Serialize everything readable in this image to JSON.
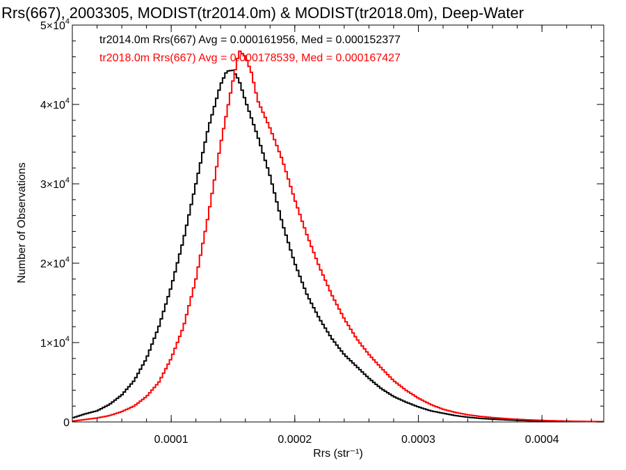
{
  "chart_data": {
    "type": "line",
    "title": "Rrs(667), 2003305, MODIST(tr2014.0m) & MODIST(tr2018.0m), Deep-Water",
    "xlabel": "Rrs (str⁻¹)",
    "ylabel": "Number of Observations",
    "xlim": [
      2e-05,
      0.00045
    ],
    "ylim": [
      0,
      50000
    ],
    "x_ticks": [
      {
        "value": 0.0001,
        "label": "0.0001"
      },
      {
        "value": 0.0002,
        "label": "0.0002"
      },
      {
        "value": 0.0003,
        "label": "0.0003"
      },
      {
        "value": 0.0004,
        "label": "0.0004"
      }
    ],
    "y_ticks": [
      {
        "value": 0,
        "label": "0"
      },
      {
        "value": 10000,
        "mantissa": "1×10",
        "exp": "4"
      },
      {
        "value": 20000,
        "mantissa": "2×10",
        "exp": "4"
      },
      {
        "value": 30000,
        "mantissa": "3×10",
        "exp": "4"
      },
      {
        "value": 40000,
        "mantissa": "4×10",
        "exp": "4"
      },
      {
        "value": 50000,
        "mantissa": "5×10",
        "exp": "4"
      }
    ],
    "grid": false,
    "step": true,
    "annotations": [
      {
        "text": "tr2014.0m Rrs(667) Avg = 0.000161956, Med = 0.000152377",
        "color": "#000000"
      },
      {
        "text": "tr2018.0m Rrs(667) Avg = 0.000178539, Med = 0.000167427",
        "color": "#ff0000"
      }
    ],
    "series": [
      {
        "color": "#000000",
        "points": [
          [
            2e-05,
            500
          ],
          [
            3e-05,
            1000
          ],
          [
            4e-05,
            1400
          ],
          [
            5e-05,
            2200
          ],
          [
            6e-05,
            3400
          ],
          [
            7e-05,
            5200
          ],
          [
            8e-05,
            8000
          ],
          [
            9e-05,
            12000
          ],
          [
            0.0001,
            17000
          ],
          [
            0.00011,
            23000
          ],
          [
            0.00012,
            30000
          ],
          [
            0.00013,
            37000
          ],
          [
            0.00014,
            42500
          ],
          [
            0.000145,
            44200
          ],
          [
            0.00015,
            44300
          ],
          [
            0.000155,
            43000
          ],
          [
            0.00016,
            40500
          ],
          [
            0.00017,
            36000
          ],
          [
            0.00018,
            31000
          ],
          [
            0.00019,
            25000
          ],
          [
            0.0002,
            20000
          ],
          [
            0.00021,
            16000
          ],
          [
            0.00022,
            13000
          ],
          [
            0.00023,
            10500
          ],
          [
            0.00024,
            8500
          ],
          [
            0.00025,
            7000
          ],
          [
            0.00026,
            5500
          ],
          [
            0.00027,
            4200
          ],
          [
            0.00028,
            3200
          ],
          [
            0.00029,
            2500
          ],
          [
            0.0003,
            1900
          ],
          [
            0.00031,
            1400
          ],
          [
            0.00032,
            1100
          ],
          [
            0.00033,
            800
          ],
          [
            0.00034,
            600
          ],
          [
            0.00035,
            450
          ],
          [
            0.00036,
            350
          ],
          [
            0.00037,
            270
          ],
          [
            0.00038,
            200
          ],
          [
            0.00039,
            150
          ],
          [
            0.0004,
            120
          ],
          [
            0.00041,
            90
          ],
          [
            0.00042,
            70
          ],
          [
            0.00043,
            50
          ],
          [
            0.00044,
            40
          ],
          [
            0.00045,
            30
          ]
        ]
      },
      {
        "color": "#ff0000",
        "points": [
          [
            2e-05,
            100
          ],
          [
            3e-05,
            300
          ],
          [
            4e-05,
            500
          ],
          [
            5e-05,
            800
          ],
          [
            6e-05,
            1300
          ],
          [
            7e-05,
            2000
          ],
          [
            8e-05,
            3200
          ],
          [
            9e-05,
            5000
          ],
          [
            0.0001,
            8000
          ],
          [
            0.00011,
            12000
          ],
          [
            0.00012,
            18000
          ],
          [
            0.00013,
            26000
          ],
          [
            0.00014,
            35000
          ],
          [
            0.00015,
            43000
          ],
          [
            0.000155,
            46800
          ],
          [
            0.00016,
            46000
          ],
          [
            0.000165,
            44000
          ],
          [
            0.00017,
            40500
          ],
          [
            0.00018,
            37000
          ],
          [
            0.00019,
            33000
          ],
          [
            0.0002,
            28000
          ],
          [
            0.00021,
            23500
          ],
          [
            0.00022,
            19500
          ],
          [
            0.00023,
            16000
          ],
          [
            0.00024,
            13000
          ],
          [
            0.00025,
            10500
          ],
          [
            0.00026,
            8500
          ],
          [
            0.00027,
            6800
          ],
          [
            0.00028,
            5200
          ],
          [
            0.00029,
            4000
          ],
          [
            0.0003,
            3000
          ],
          [
            0.00031,
            2200
          ],
          [
            0.00032,
            1600
          ],
          [
            0.00033,
            1200
          ],
          [
            0.00034,
            900
          ],
          [
            0.00035,
            700
          ],
          [
            0.00036,
            550
          ],
          [
            0.00037,
            430
          ],
          [
            0.00038,
            330
          ],
          [
            0.00039,
            260
          ],
          [
            0.0004,
            200
          ],
          [
            0.00041,
            150
          ],
          [
            0.00042,
            110
          ],
          [
            0.00043,
            80
          ],
          [
            0.00044,
            60
          ],
          [
            0.00045,
            40
          ]
        ]
      }
    ]
  }
}
